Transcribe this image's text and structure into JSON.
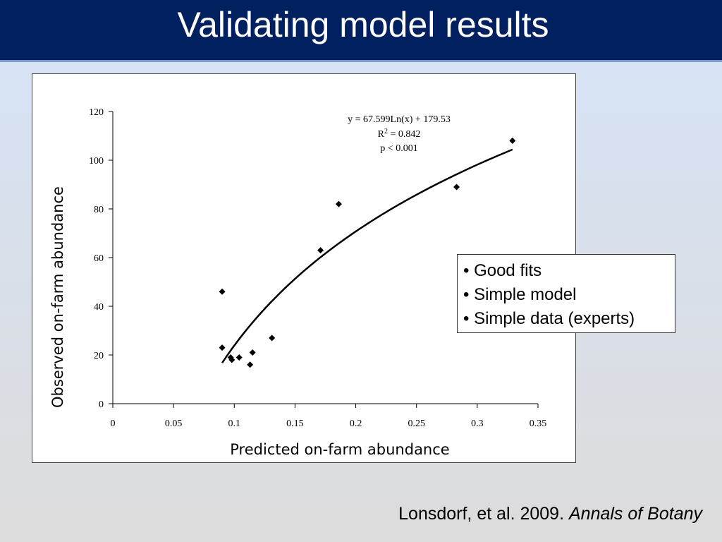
{
  "slide": {
    "title": "Validating model results",
    "notes": [
      "• Good fits",
      "• Simple model",
      "• Simple data (experts)"
    ],
    "citation_text": "Lonsdorf, et al. 2009.",
    "citation_journal": "Annals of Botany"
  },
  "chart_data": {
    "type": "scatter",
    "xlabel": "Predicted on-farm abundance",
    "ylabel": "Observed on-farm abundance",
    "xlim": [
      0,
      0.35
    ],
    "ylim": [
      0,
      120
    ],
    "x_ticks": [
      0,
      0.05,
      0.1,
      0.15,
      0.2,
      0.25,
      0.3,
      0.35
    ],
    "x_tick_labels": [
      "0",
      "0.05",
      "0.1",
      "0.15",
      "0.2",
      "0.25",
      "0.3",
      "0.35"
    ],
    "y_ticks": [
      0,
      20,
      40,
      60,
      80,
      100,
      120
    ],
    "y_tick_labels": [
      "0",
      "20",
      "40",
      "60",
      "80",
      "100",
      "120"
    ],
    "grid": false,
    "points": [
      {
        "x": 0.09,
        "y": 46
      },
      {
        "x": 0.09,
        "y": 23
      },
      {
        "x": 0.097,
        "y": 19
      },
      {
        "x": 0.098,
        "y": 18
      },
      {
        "x": 0.104,
        "y": 19
      },
      {
        "x": 0.113,
        "y": 16
      },
      {
        "x": 0.115,
        "y": 21
      },
      {
        "x": 0.131,
        "y": 27
      },
      {
        "x": 0.171,
        "y": 63
      },
      {
        "x": 0.186,
        "y": 82
      },
      {
        "x": 0.283,
        "y": 89
      },
      {
        "x": 0.329,
        "y": 108
      }
    ],
    "trendline": {
      "type": "logarithmic",
      "a": 67.599,
      "b": 179.53,
      "x_range": [
        0.09,
        0.329
      ]
    },
    "annotations": {
      "equation": "y = 67.599Ln(x) + 179.53",
      "r2_label": "R",
      "r2_sup": "2",
      "r2_value": " = 0.842",
      "p_value": "p < 0.001"
    },
    "marker_color": "#000000",
    "line_color": "#000000"
  }
}
